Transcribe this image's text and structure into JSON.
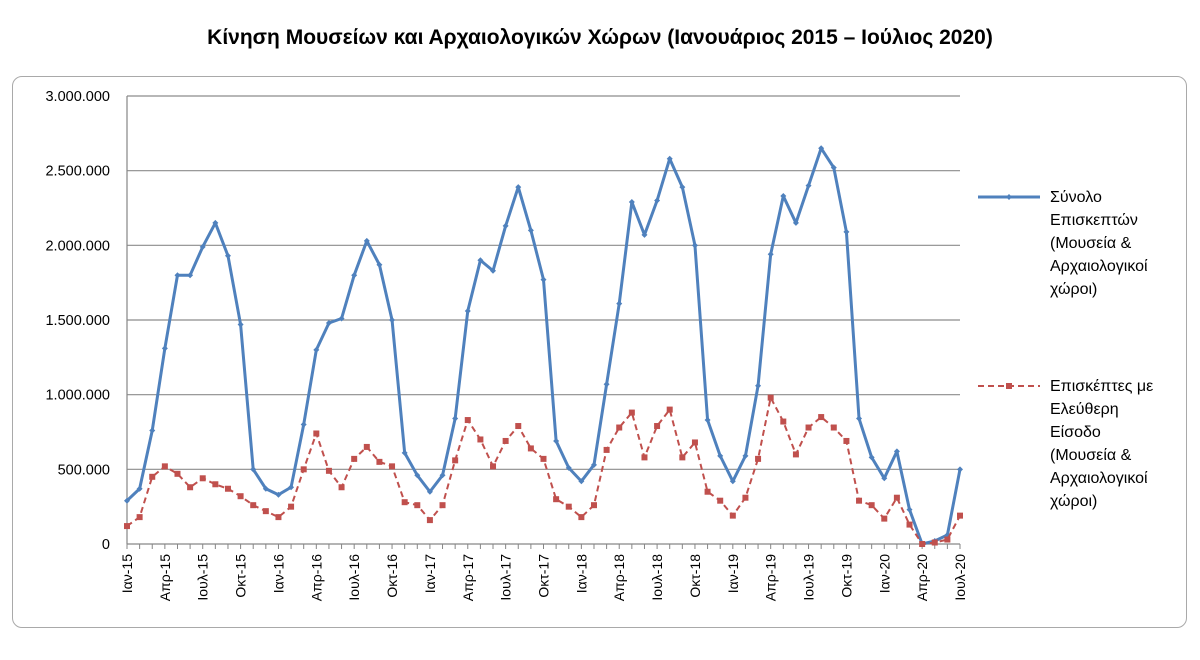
{
  "chart_data": {
    "type": "line",
    "title": "Κίνηση Μουσείων και Αρχαιολογικών Χώρων (Ιανουάριος 2015 – Ιούλιος 2020)",
    "xlabel": "",
    "ylabel": "",
    "ylim": [
      0,
      3000000
    ],
    "y_ticks": [
      "0",
      "500.000",
      "1.000.000",
      "1.500.000",
      "2.000.000",
      "2.500.000",
      "3.000.000"
    ],
    "y_tick_values": [
      0,
      500000,
      1000000,
      1500000,
      2000000,
      2500000,
      3000000
    ],
    "x_tick_labels": [
      "Ιαν-15",
      "Απρ-15",
      "Ιουλ-15",
      "Οκτ-15",
      "Ιαν-16",
      "Απρ-16",
      "Ιουλ-16",
      "Οκτ-16",
      "Ιαν-17",
      "Απρ-17",
      "Ιουλ-17",
      "Οκτ-17",
      "Ιαν-18",
      "Απρ-18",
      "Ιουλ-18",
      "Οκτ-18",
      "Ιαν-19",
      "Απρ-19",
      "Ιουλ-19",
      "Οκτ-19",
      "Ιαν-20",
      "Απρ-20",
      "Ιουλ-20"
    ],
    "x_start": "2015-01",
    "x_end": "2020-07",
    "grid": true,
    "legend_position": "right",
    "series": [
      {
        "name": "Σύνολο Επισκεπτών (Μουσεία & Αρχαιολογικοί χώροι)",
        "legend_lines": [
          "Σύνολο",
          "Επισκεπτών",
          "(Μουσεία &",
          "Αρχαιολογικοί",
          "χώροι)"
        ],
        "color": "#4f81bd",
        "style": "solid",
        "marker": "diamond",
        "values": [
          290000,
          370000,
          760000,
          1310000,
          1800000,
          1800000,
          1990000,
          2150000,
          1930000,
          1470000,
          500000,
          370000,
          330000,
          380000,
          800000,
          1300000,
          1480000,
          1510000,
          1800000,
          2030000,
          1870000,
          1500000,
          610000,
          460000,
          350000,
          460000,
          840000,
          1560000,
          1900000,
          1830000,
          2130000,
          2390000,
          2100000,
          1770000,
          690000,
          510000,
          420000,
          530000,
          1070000,
          1610000,
          2290000,
          2070000,
          2300000,
          2580000,
          2390000,
          2000000,
          830000,
          590000,
          420000,
          590000,
          1060000,
          1940000,
          2330000,
          2150000,
          2400000,
          2650000,
          2520000,
          2090000,
          840000,
          580000,
          440000,
          620000,
          230000,
          0,
          20000,
          60000,
          500000
        ]
      },
      {
        "name": "Επισκέπτες με Ελεύθερη Είσοδο (Μουσεία & Αρχαιολογικοί χώροι)",
        "legend_lines": [
          "Επισκέπτες με",
          "Ελεύθερη",
          "Είσοδο",
          "(Μουσεία &",
          "Αρχαιολογικοί",
          "χώροι)"
        ],
        "color": "#c0504d",
        "style": "dashed",
        "marker": "square",
        "values": [
          120000,
          180000,
          450000,
          520000,
          470000,
          380000,
          440000,
          400000,
          370000,
          320000,
          260000,
          220000,
          180000,
          250000,
          500000,
          740000,
          490000,
          380000,
          570000,
          650000,
          550000,
          520000,
          280000,
          260000,
          160000,
          260000,
          560000,
          830000,
          700000,
          520000,
          690000,
          790000,
          640000,
          570000,
          300000,
          250000,
          180000,
          260000,
          630000,
          780000,
          880000,
          580000,
          790000,
          900000,
          580000,
          680000,
          350000,
          290000,
          190000,
          310000,
          570000,
          980000,
          820000,
          600000,
          780000,
          850000,
          780000,
          690000,
          290000,
          260000,
          170000,
          310000,
          130000,
          0,
          10000,
          30000,
          190000
        ]
      }
    ]
  }
}
